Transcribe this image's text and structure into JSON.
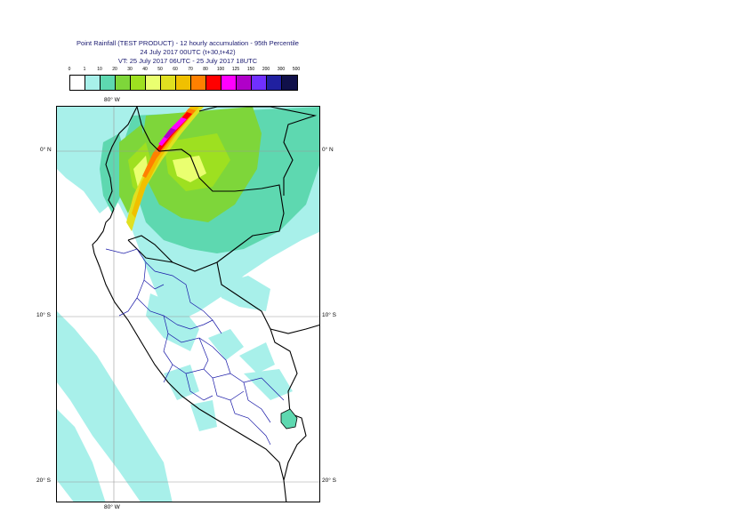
{
  "title": {
    "line1": "Point Rainfall (TEST PRODUCT) - 12 hourly accumulation - 95th Percentile",
    "line2": "24 July 2017 00UTC (t+30,t+42)",
    "line3": "VT: 25 July 2017 06UTC - 25 July 2017 18UTC"
  },
  "legend": {
    "thresholds": [
      "0",
      "1",
      "10",
      "20",
      "30",
      "40",
      "50",
      "60",
      "70",
      "80",
      "100",
      "125",
      "150",
      "200",
      "300",
      "500"
    ],
    "colors": [
      "#ffffff",
      "#a8f0ea",
      "#5ed8b0",
      "#7ed63a",
      "#9ee020",
      "#eaff70",
      "#e0e020",
      "#f0c000",
      "#ff8000",
      "#ff0000",
      "#ff00ff",
      "#b000c8",
      "#7030ff",
      "#2020a0",
      "#10104a"
    ]
  },
  "map": {
    "lon_labels": {
      "top": "80° W",
      "bottom": "80° W"
    },
    "lat_labels": {
      "north": "0° N",
      "south10": "10° S",
      "south20": "20° S"
    }
  }
}
